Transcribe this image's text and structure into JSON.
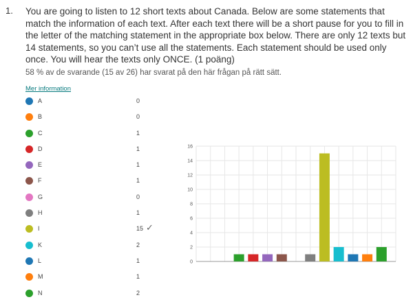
{
  "question": {
    "number": "1.",
    "text": "You are going to listen to 12 short texts about Canada. Below are some statements that match the information of each text. After each text there will be a short pause for you to fill in the letter of the matching statement in the appropriate box below. There are only 12 texts but 14 statements, so you can’t use all the statements. Each statement should be used only once. You will hear the texts only ONCE. (1 poäng)"
  },
  "stats_text": "58 % av de svarande (15 av 26) har svarat på den här frågan på rätt sätt.",
  "more_info_link": "Mer information",
  "legend": [
    {
      "label": "A",
      "count": "0",
      "color": "#1f77b4"
    },
    {
      "label": "B",
      "count": "0",
      "color": "#ff7f0e"
    },
    {
      "label": "C",
      "count": "1",
      "color": "#2ca02c"
    },
    {
      "label": "D",
      "count": "1",
      "color": "#d62728"
    },
    {
      "label": "E",
      "count": "1",
      "color": "#9467bd"
    },
    {
      "label": "F",
      "count": "1",
      "color": "#8c564b"
    },
    {
      "label": "G",
      "count": "0",
      "color": "#e377c2"
    },
    {
      "label": "H",
      "count": "1",
      "color": "#7f7f7f"
    },
    {
      "label": "I",
      "count": "15",
      "color": "#bcbd22",
      "correct": true
    },
    {
      "label": "K",
      "count": "2",
      "color": "#17becf"
    },
    {
      "label": "L",
      "count": "1",
      "color": "#1f77b4"
    },
    {
      "label": "M",
      "count": "1",
      "color": "#ff7f0e"
    },
    {
      "label": "N",
      "count": "2",
      "color": "#2ca02c"
    }
  ],
  "check_glyph": "✓",
  "chart_data": {
    "type": "bar",
    "categories": [
      "A",
      "B",
      "C",
      "D",
      "E",
      "F",
      "G",
      "H",
      "I",
      "K",
      "L",
      "M",
      "N"
    ],
    "values": [
      0,
      0,
      1,
      1,
      1,
      1,
      0,
      1,
      15,
      2,
      1,
      1,
      2
    ],
    "colors": [
      "#1f77b4",
      "#ff7f0e",
      "#2ca02c",
      "#d62728",
      "#9467bd",
      "#8c564b",
      "#e377c2",
      "#7f7f7f",
      "#bcbd22",
      "#17becf",
      "#1f77b4",
      "#ff7f0e",
      "#2ca02c"
    ],
    "ylim": [
      0,
      16
    ],
    "yticks": [
      "0",
      "2",
      "4",
      "6",
      "8",
      "10",
      "12",
      "14",
      "16"
    ],
    "grid": true
  }
}
